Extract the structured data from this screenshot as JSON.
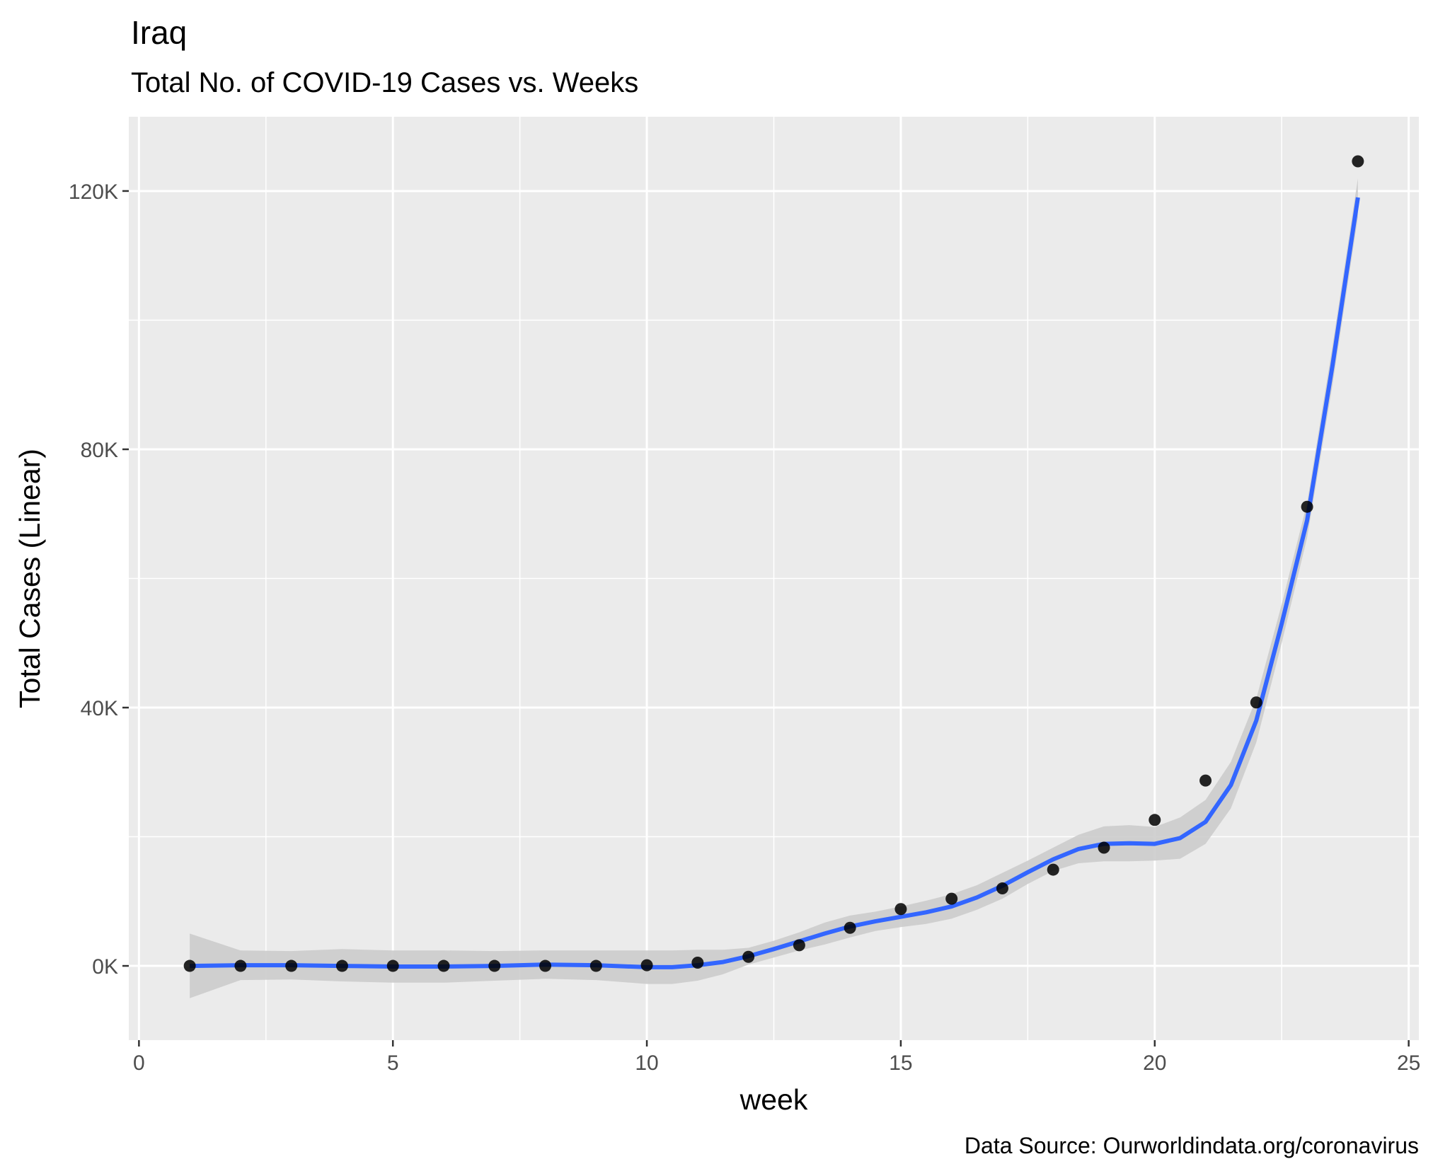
{
  "chart_data": {
    "type": "scatter",
    "title": "Iraq",
    "subtitle": "Total No. of COVID-19 Cases vs. Weeks",
    "xlabel": "week",
    "ylabel": "Total Cases (Linear)",
    "caption": "Data Source: Ourworldindata.org/coronavirus",
    "xlim": [
      -0.2,
      25.2
    ],
    "ylim": [
      -11500,
      131500
    ],
    "x_ticks": [
      0,
      5,
      10,
      15,
      20,
      25
    ],
    "x_tick_labels": [
      "0",
      "5",
      "10",
      "15",
      "20",
      "25"
    ],
    "y_ticks": [
      0,
      40000,
      80000,
      120000
    ],
    "y_tick_labels": [
      "0K",
      "40K",
      "80K",
      "120K"
    ],
    "grid": true,
    "panel_background": "#ebebeb",
    "points": {
      "color": "#000000",
      "x": [
        1,
        2,
        3,
        4,
        5,
        6,
        7,
        8,
        9,
        10,
        11,
        12,
        13,
        14,
        15,
        16,
        17,
        18,
        19,
        20,
        21,
        22,
        23,
        24
      ],
      "y": [
        0,
        0,
        0,
        0,
        0,
        0,
        0,
        0,
        0,
        100,
        500,
        1400,
        3200,
        5900,
        8800,
        10400,
        12000,
        14900,
        18300,
        22600,
        28700,
        40800,
        71100,
        124600
      ]
    },
    "smooth": {
      "color": "#3366ff",
      "band_color": "#cccccc",
      "x": [
        1,
        2,
        3,
        4,
        5,
        6,
        7,
        8,
        9,
        10,
        10.5,
        11,
        11.5,
        12,
        12.5,
        13,
        13.5,
        14,
        14.5,
        15,
        15.5,
        16,
        16.5,
        17,
        17.5,
        18,
        18.5,
        19,
        19.5,
        20,
        20.5,
        21,
        21.5,
        22,
        22.5,
        23,
        23.5,
        24
      ],
      "y": [
        0,
        100,
        100,
        0,
        -100,
        -100,
        0,
        200,
        100,
        -200,
        -200,
        100,
        600,
        1500,
        2600,
        3800,
        5000,
        6100,
        6900,
        7600,
        8300,
        9200,
        10600,
        12400,
        14500,
        16500,
        18100,
        18900,
        19000,
        18900,
        19800,
        22300,
        28000,
        38000,
        53000,
        69000,
        93000,
        119000
      ],
      "lower": [
        -5000,
        -2200,
        -2100,
        -2400,
        -2600,
        -2600,
        -2300,
        -2000,
        -2200,
        -2800,
        -2800,
        -2300,
        -1300,
        200,
        1300,
        2400,
        3300,
        4400,
        5400,
        6000,
        6500,
        7300,
        8700,
        10400,
        12700,
        14700,
        15900,
        16200,
        16200,
        16300,
        16600,
        18900,
        24400,
        34600,
        50000,
        66300,
        90000,
        116000
      ],
      "upper": [
        5000,
        2400,
        2300,
        2600,
        2400,
        2400,
        2300,
        2400,
        2400,
        2400,
        2400,
        2500,
        2500,
        2800,
        3900,
        5200,
        6700,
        7800,
        8400,
        9200,
        10100,
        11100,
        12500,
        14400,
        16300,
        18300,
        20300,
        21600,
        21800,
        21500,
        23000,
        25700,
        31600,
        41400,
        56000,
        71700,
        96000,
        122000
      ]
    }
  }
}
